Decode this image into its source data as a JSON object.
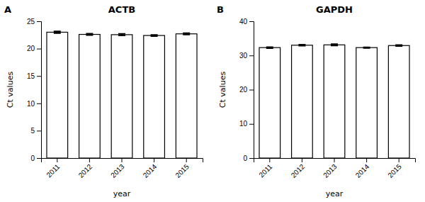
{
  "chart_data": [
    {
      "type": "bar",
      "title": "ACTB",
      "annotations": [
        "A"
      ],
      "xlabel": "year",
      "ylabel": "Ct values",
      "categories": [
        "2011",
        "2012",
        "2013",
        "2014",
        "2015"
      ],
      "values": [
        23.0,
        22.6,
        22.55,
        22.4,
        22.7
      ],
      "errors": [
        0.18,
        0.15,
        0.15,
        0.12,
        0.15
      ],
      "color": "#ffffff",
      "ylim": [
        0,
        25
      ],
      "yticks": [
        0,
        5,
        10,
        15,
        20,
        25
      ]
    },
    {
      "type": "bar",
      "title": "GAPDH",
      "annotations": [
        "B"
      ],
      "xlabel": "year",
      "ylabel": "Ct values",
      "categories": [
        "2011",
        "2012",
        "2013",
        "2014",
        "2015"
      ],
      "values": [
        32.3,
        33.0,
        33.1,
        32.3,
        32.9
      ],
      "errors": [
        0.18,
        0.18,
        0.22,
        0.12,
        0.18
      ],
      "color": "#ffffff",
      "ylim": [
        0,
        40
      ],
      "yticks": [
        0,
        10,
        20,
        30,
        40
      ]
    }
  ]
}
